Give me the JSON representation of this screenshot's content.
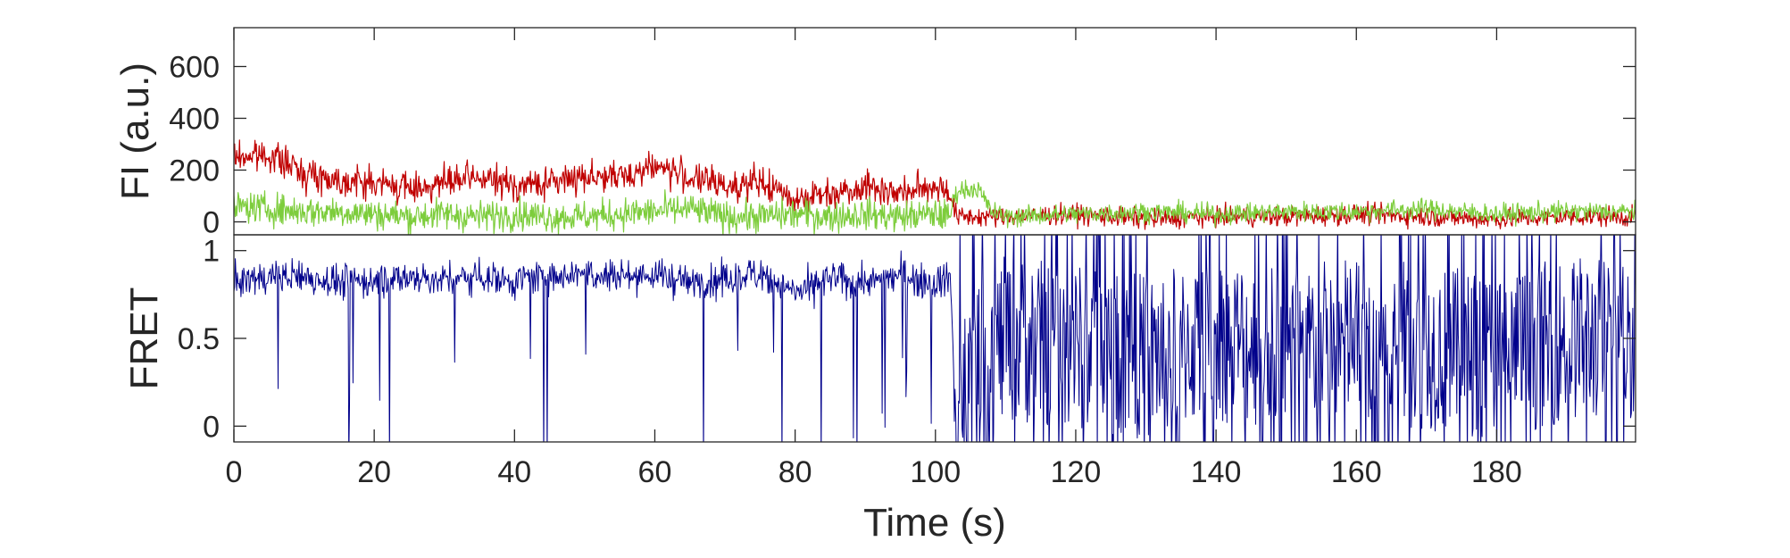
{
  "chart_data": [
    {
      "type": "line",
      "panel": "top",
      "ylabel": "FI (a.u.)",
      "xlim": [
        0,
        199.8
      ],
      "ylim": [
        -50,
        750
      ],
      "yticks": [
        0,
        200,
        400,
        600
      ],
      "ytick_labels": [
        "0",
        "200",
        "400",
        "600"
      ],
      "grid": false,
      "legend": "none",
      "series": [
        {
          "color": "#c00000",
          "x": [
            0,
            5,
            10,
            15,
            20,
            25,
            30,
            35,
            40,
            45,
            50,
            55,
            60,
            65,
            70,
            75,
            80,
            85,
            90,
            95,
            100,
            102,
            103,
            110,
            120,
            130,
            140,
            150,
            160,
            170,
            180,
            190,
            199.8
          ],
          "values": [
            250,
            260,
            190,
            160,
            150,
            130,
            150,
            170,
            140,
            150,
            180,
            170,
            220,
            170,
            140,
            150,
            90,
            110,
            140,
            110,
            140,
            120,
            20,
            20,
            30,
            10,
            20,
            20,
            30,
            20,
            10,
            20,
            20
          ]
        },
        {
          "color": "#7dcd3c",
          "x": [
            0,
            5,
            10,
            15,
            20,
            25,
            30,
            35,
            40,
            45,
            50,
            55,
            60,
            65,
            70,
            75,
            80,
            85,
            90,
            95,
            100,
            102,
            103,
            106,
            108,
            110,
            120,
            130,
            140,
            150,
            160,
            170,
            180,
            190,
            199.8
          ],
          "values": [
            60,
            50,
            40,
            40,
            30,
            20,
            30,
            20,
            30,
            20,
            20,
            30,
            40,
            50,
            20,
            20,
            30,
            20,
            30,
            20,
            30,
            20,
            120,
            130,
            40,
            20,
            30,
            40,
            30,
            40,
            40,
            50,
            30,
            40,
            40
          ]
        }
      ]
    },
    {
      "type": "line",
      "panel": "bottom",
      "xlabel": "Time (s)",
      "ylabel": "FRET",
      "xlim": [
        0,
        199.8
      ],
      "ylim": [
        -0.09,
        1.09
      ],
      "xticks": [
        0,
        20,
        40,
        60,
        80,
        100,
        120,
        140,
        160,
        180
      ],
      "xtick_labels": [
        "0",
        "20",
        "40",
        "60",
        "80",
        "100",
        "120",
        "140",
        "160",
        "180"
      ],
      "yticks": [
        0,
        0.5,
        1
      ],
      "ytick_labels": [
        "0",
        "0.5",
        "1"
      ],
      "grid": false,
      "legend": "none",
      "series": [
        {
          "color": "#00008b",
          "x": [
            0,
            5,
            10,
            15,
            20,
            25,
            30,
            35,
            40,
            45,
            50,
            55,
            60,
            65,
            70,
            75,
            80,
            85,
            90,
            95,
            100,
            102,
            103,
            110,
            120,
            130,
            140,
            150,
            160,
            170,
            180,
            190,
            199.8
          ],
          "values": [
            0.82,
            0.85,
            0.85,
            0.82,
            0.83,
            0.85,
            0.83,
            0.86,
            0.83,
            0.86,
            0.88,
            0.86,
            0.86,
            0.82,
            0.82,
            0.88,
            0.75,
            0.84,
            0.82,
            0.86,
            0.82,
            0.86,
            0.15,
            0.5,
            0.45,
            0.4,
            0.5,
            0.45,
            0.5,
            0.45,
            0.4,
            0.5,
            0.5
          ]
        }
      ]
    }
  ]
}
